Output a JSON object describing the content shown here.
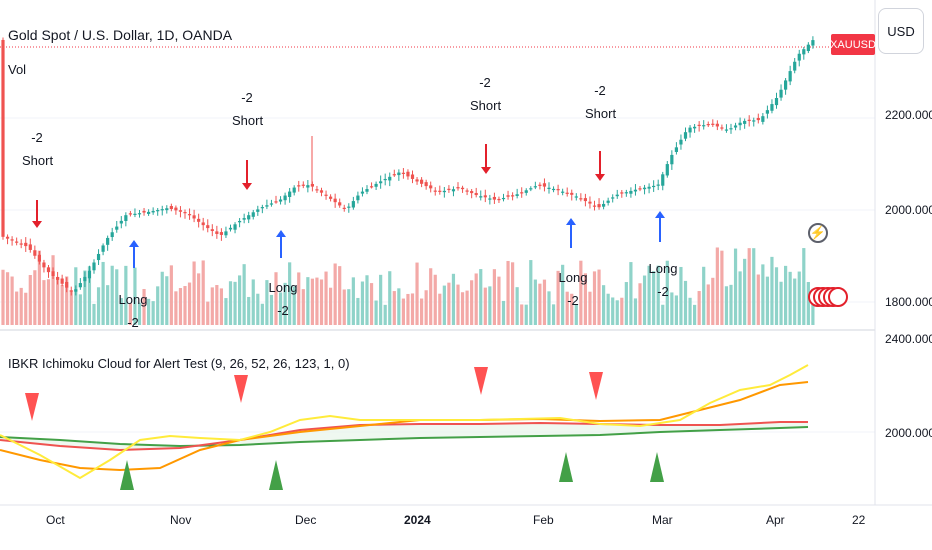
{
  "header": {
    "title": "Gold Spot / U.S. Dollar, 1D, OANDA",
    "volume_label": "Vol",
    "currency_button": "USD",
    "symbol_badge": "XAUUSD"
  },
  "indicator": {
    "title": "IBKR Ichimoku  Cloud for Alert Test (9, 26, 52, 26, 123, 1, 0)"
  },
  "price_axis": {
    "labels": [
      "2200.000",
      "2000.000",
      "1800.000",
      "2400.000"
    ]
  },
  "indicator_axis": {
    "labels": [
      "2000.000"
    ]
  },
  "time_axis": {
    "labels": [
      {
        "text": "Oct",
        "bold": false
      },
      {
        "text": "Nov",
        "bold": false
      },
      {
        "text": "Dec",
        "bold": false
      },
      {
        "text": "2024",
        "bold": true
      },
      {
        "text": "Feb",
        "bold": false
      },
      {
        "text": "Mar",
        "bold": false
      },
      {
        "text": "Apr",
        "bold": false
      },
      {
        "text": "22",
        "bold": false
      }
    ]
  },
  "signals": {
    "short": [
      "-2\nShort",
      "-2\nShort",
      "-2\nShort",
      "-2\nShort"
    ],
    "long": [
      "Long\n-2",
      "Long\n-2",
      "Long\n-2",
      "Long\n-2"
    ]
  },
  "colors": {
    "up": "#26a69a",
    "down": "#ef5350",
    "vol_up": "#8fd3c9",
    "vol_down": "#f3a9a7",
    "short_arrow": "#e3202b",
    "long_arrow": "#2962ff",
    "tenkan": "#ffeb3b",
    "kijun": "#ff9800",
    "span_a": "#ef5350",
    "span_b": "#43a047",
    "marker_red": "#ff5252",
    "marker_green": "#43a047"
  },
  "icons": {
    "alert": "flash-icon",
    "flags": "us-flag-icon"
  }
}
